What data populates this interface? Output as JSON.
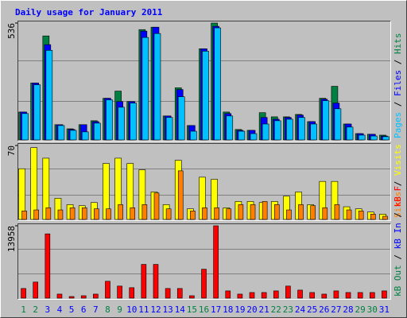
{
  "chart_data": [
    {
      "type": "bar",
      "title": "Daily usage for January 2011",
      "ylim": [
        0,
        536
      ],
      "yticks": [
        536
      ],
      "legend_separator": " / ",
      "series": [
        {
          "name": "Hits",
          "color": "#008040",
          "values": [
            128,
            261,
            477,
            70,
            51,
            70,
            88,
            191,
            224,
            176,
            506,
            517,
            110,
            239,
            66,
            418,
            536,
            128,
            48,
            44,
            125,
            106,
            106,
            117,
            84,
            191,
            246,
            73,
            29,
            26,
            22
          ]
        },
        {
          "name": "Files",
          "color": "#0000ff",
          "values": [
            128,
            261,
            437,
            70,
            48,
            70,
            84,
            191,
            176,
            176,
            499,
            517,
            110,
            231,
            66,
            418,
            521,
            121,
            44,
            44,
            103,
            95,
            103,
            114,
            84,
            187,
            169,
            73,
            29,
            26,
            18
          ]
        },
        {
          "name": "Pages",
          "color": "#00c0ff",
          "values": [
            121,
            253,
            411,
            66,
            44,
            37,
            77,
            184,
            150,
            169,
            470,
            488,
            103,
            198,
            40,
            407,
            514,
            110,
            40,
            29,
            73,
            88,
            95,
            103,
            73,
            180,
            143,
            59,
            22,
            18,
            15
          ]
        }
      ]
    },
    {
      "type": "bar",
      "ylim": [
        0,
        70
      ],
      "yticks": [
        70
      ],
      "legend_separator": " / ",
      "series": [
        {
          "name": "Visits",
          "color": "#ffff00",
          "values": [
            48,
            68,
            58,
            20,
            14,
            13,
            16,
            53,
            58,
            53,
            47,
            26,
            14,
            56,
            10,
            40,
            38,
            11,
            17,
            17,
            16,
            17,
            22,
            26,
            14,
            36,
            36,
            12,
            10,
            7,
            5
          ]
        },
        {
          "name": "Sites",
          "color": "#ff8000",
          "values": [
            8,
            9,
            11,
            9,
            11,
            11,
            10,
            10,
            14,
            11,
            14,
            25,
            10,
            46,
            8,
            11,
            11,
            10,
            14,
            14,
            17,
            14,
            9,
            14,
            13,
            11,
            14,
            9,
            8,
            5,
            3
          ]
        }
      ]
    },
    {
      "type": "bar",
      "ylim": [
        0,
        13958
      ],
      "yticks": [
        13958
      ],
      "legend_separator": " / ",
      "categories": [
        "1",
        "2",
        "3",
        "4",
        "5",
        "6",
        "7",
        "8",
        "9",
        "10",
        "11",
        "12",
        "13",
        "14",
        "15",
        "16",
        "17",
        "18",
        "19",
        "20",
        "21",
        "22",
        "23",
        "24",
        "25",
        "26",
        "27",
        "28",
        "29",
        "30",
        "31"
      ],
      "category_colors": [
        "#008040",
        "#008040",
        "#0000ff",
        "#0000ff",
        "#0000ff",
        "#0000ff",
        "#0000ff",
        "#008040",
        "#008040",
        "#0000ff",
        "#0000ff",
        "#0000ff",
        "#0000ff",
        "#0000ff",
        "#008040",
        "#008040",
        "#0000ff",
        "#0000ff",
        "#0000ff",
        "#0000ff",
        "#0000ff",
        "#008040",
        "#008040",
        "#0000ff",
        "#0000ff",
        "#0000ff",
        "#0000ff",
        "#0000ff",
        "#008040",
        "#008040",
        "#0000ff"
      ],
      "series": [
        {
          "name": "kB F",
          "color": "#ff0000",
          "values": [
            1860,
            3100,
            12400,
            775,
            310,
            465,
            775,
            3255,
            2325,
            2015,
            6510,
            6510,
            1860,
            1860,
            465,
            5580,
            13958,
            1395,
            775,
            1085,
            1085,
            1395,
            2325,
            1550,
            1085,
            775,
            1395,
            1085,
            1085,
            1085,
            1395
          ]
        },
        {
          "name": "kB In",
          "color": "#0000ff",
          "values": [
            0,
            0,
            0,
            0,
            0,
            0,
            0,
            0,
            0,
            0,
            0,
            0,
            0,
            0,
            0,
            0,
            0,
            0,
            0,
            0,
            0,
            0,
            0,
            0,
            0,
            0,
            0,
            0,
            0,
            0,
            0
          ]
        },
        {
          "name": "kB Out",
          "color": "#008040",
          "values": [
            0,
            0,
            0,
            0,
            0,
            0,
            0,
            0,
            0,
            0,
            0,
            0,
            0,
            0,
            0,
            0,
            0,
            0,
            0,
            0,
            0,
            0,
            0,
            0,
            0,
            0,
            0,
            0,
            0,
            0,
            0
          ]
        }
      ]
    }
  ]
}
